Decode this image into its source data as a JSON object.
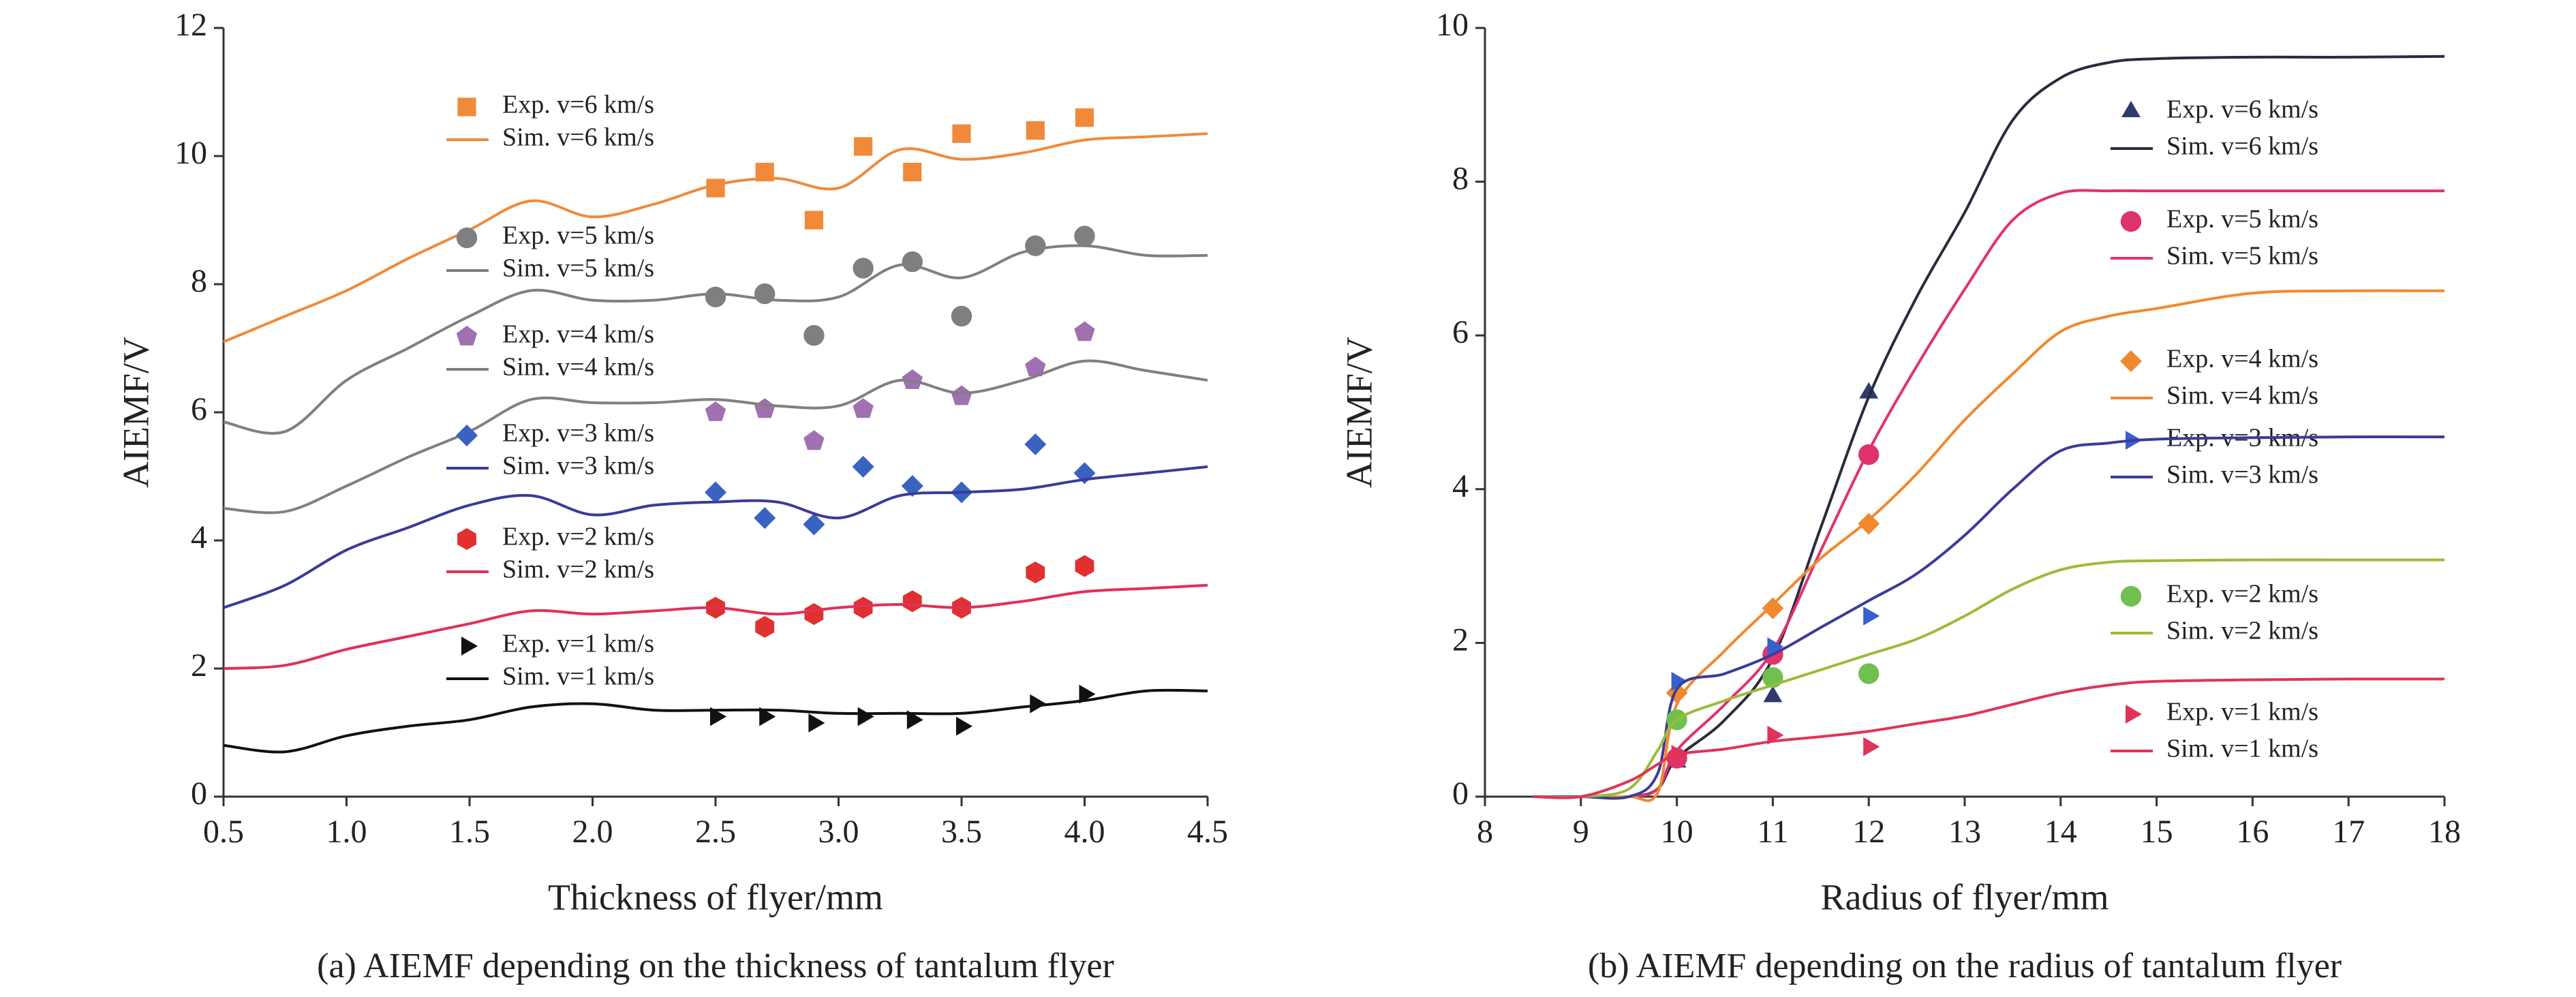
{
  "chart_data": [
    {
      "type": "line",
      "caption": "(a) AIEMF depending on the thickness of tantalum flyer",
      "x_label": "Thickness of flyer/mm",
      "y_label": "AIEMF/V",
      "xlim": [
        0.5,
        4.5
      ],
      "ylim": [
        0,
        12
      ],
      "xticks": [
        0.5,
        {
          "value": 1,
          "label": "1.0"
        },
        1.5,
        {
          "value": 2,
          "label": "2.0"
        },
        2.5,
        {
          "value": 3,
          "label": "3.0"
        },
        3.5,
        {
          "value": 4,
          "label": "4.0"
        },
        4.5
      ],
      "yticks": [
        0,
        2,
        4,
        6,
        8,
        10,
        12
      ],
      "series": [
        {
          "name": "Exp. v=6 km/s",
          "type": "scatter",
          "marker": "square",
          "color": "#f08a3a",
          "x": [
            2.5,
            2.7,
            2.9,
            3.1,
            3.3,
            3.5,
            3.8,
            4.0
          ],
          "values": [
            9.5,
            9.75,
            9.0,
            10.15,
            9.75,
            10.35,
            10.4,
            10.6
          ]
        },
        {
          "name": "Sim. v=6 km/s",
          "type": "line",
          "color": "#f08a3a",
          "x": [
            0.5,
            0.75,
            1.0,
            1.25,
            1.5,
            1.75,
            2.0,
            2.25,
            2.5,
            2.75,
            3.0,
            3.25,
            3.5,
            3.75,
            4.0,
            4.25,
            4.5
          ],
          "values": [
            7.1,
            7.5,
            7.9,
            8.4,
            8.85,
            9.3,
            9.05,
            9.25,
            9.55,
            9.65,
            9.5,
            10.1,
            9.95,
            10.05,
            10.25,
            10.3,
            10.35
          ]
        },
        {
          "name": "Exp. v=5 km/s",
          "type": "scatter",
          "marker": "circle",
          "color": "#7f7f7f",
          "x": [
            2.5,
            2.7,
            2.9,
            3.1,
            3.3,
            3.5,
            3.8,
            4.0
          ],
          "values": [
            7.8,
            7.85,
            7.2,
            8.25,
            8.35,
            7.5,
            8.6,
            8.75
          ]
        },
        {
          "name": "Sim. v=5 km/s",
          "type": "line",
          "color": "#7f7f7f",
          "x": [
            0.5,
            0.75,
            1.0,
            1.25,
            1.5,
            1.75,
            2.0,
            2.25,
            2.5,
            2.75,
            3.0,
            3.25,
            3.5,
            3.75,
            4.0,
            4.25,
            4.5
          ],
          "values": [
            5.85,
            5.7,
            6.5,
            7.0,
            7.5,
            7.9,
            7.75,
            7.75,
            7.85,
            7.75,
            7.8,
            8.3,
            8.1,
            8.5,
            8.6,
            8.45,
            8.45
          ]
        },
        {
          "name": "Exp. v=4 km/s",
          "type": "scatter",
          "marker": "pentagon",
          "color": "#a070b0",
          "x": [
            2.5,
            2.7,
            2.9,
            3.1,
            3.3,
            3.5,
            3.8,
            4.0
          ],
          "values": [
            6.0,
            6.05,
            5.55,
            6.05,
            6.5,
            6.25,
            6.7,
            7.25
          ]
        },
        {
          "name": "Sim. v=4 km/s",
          "type": "line",
          "color": "#808080",
          "x": [
            0.5,
            0.75,
            1.0,
            1.25,
            1.5,
            1.75,
            2.0,
            2.25,
            2.5,
            2.75,
            3.0,
            3.25,
            3.5,
            3.75,
            4.0,
            4.25,
            4.5
          ],
          "values": [
            4.5,
            4.45,
            4.85,
            5.3,
            5.7,
            6.2,
            6.15,
            6.15,
            6.2,
            6.1,
            6.1,
            6.5,
            6.3,
            6.5,
            6.8,
            6.65,
            6.5
          ]
        },
        {
          "name": "Exp. v=3 km/s",
          "type": "scatter",
          "marker": "diamond",
          "color": "#3a62c0",
          "x": [
            2.5,
            2.7,
            2.9,
            3.1,
            3.3,
            3.5,
            3.8,
            4.0
          ],
          "values": [
            4.75,
            4.35,
            4.25,
            5.15,
            4.85,
            4.75,
            5.5,
            5.05
          ]
        },
        {
          "name": "Sim. v=3 km/s",
          "type": "line",
          "color": "#3a3a9a",
          "x": [
            0.5,
            0.75,
            1.0,
            1.25,
            1.5,
            1.75,
            2.0,
            2.25,
            2.5,
            2.75,
            3.0,
            3.25,
            3.5,
            3.75,
            4.0,
            4.25,
            4.5
          ],
          "values": [
            2.95,
            3.3,
            3.85,
            4.2,
            4.55,
            4.7,
            4.4,
            4.55,
            4.6,
            4.6,
            4.35,
            4.7,
            4.75,
            4.8,
            4.95,
            5.05,
            5.15
          ]
        },
        {
          "name": "Exp. v=2 km/s",
          "type": "scatter",
          "marker": "hexagon",
          "color": "#e03030",
          "x": [
            2.5,
            2.7,
            2.9,
            3.1,
            3.3,
            3.5,
            3.8,
            4.0
          ],
          "values": [
            2.95,
            2.65,
            2.85,
            2.95,
            3.05,
            2.95,
            3.5,
            3.6
          ]
        },
        {
          "name": "Sim. v=2 km/s",
          "type": "line",
          "color": "#e0305a",
          "x": [
            0.5,
            0.75,
            1.0,
            1.25,
            1.5,
            1.75,
            2.0,
            2.25,
            2.5,
            2.75,
            3.0,
            3.25,
            3.5,
            3.75,
            4.0,
            4.25,
            4.5
          ],
          "values": [
            2.0,
            2.05,
            2.3,
            2.5,
            2.7,
            2.9,
            2.85,
            2.9,
            2.95,
            2.85,
            2.95,
            3.0,
            2.95,
            3.05,
            3.2,
            3.25,
            3.3
          ]
        },
        {
          "name": "Exp. v=1 km/s",
          "type": "scatter",
          "marker": "triangle-right",
          "color": "#111111",
          "x": [
            2.5,
            2.7,
            2.9,
            3.1,
            3.3,
            3.5,
            3.8,
            4.0
          ],
          "values": [
            1.25,
            1.25,
            1.15,
            1.25,
            1.2,
            1.1,
            1.45,
            1.6
          ]
        },
        {
          "name": "Sim. v=1 km/s",
          "type": "line",
          "color": "#111111",
          "x": [
            0.5,
            0.75,
            1.0,
            1.25,
            1.5,
            1.75,
            2.0,
            2.25,
            2.5,
            2.75,
            3.0,
            3.25,
            3.5,
            3.75,
            4.0,
            4.25,
            4.5
          ],
          "values": [
            0.8,
            0.7,
            0.95,
            1.1,
            1.2,
            1.4,
            1.45,
            1.35,
            1.35,
            1.35,
            1.3,
            1.3,
            1.3,
            1.4,
            1.5,
            1.65,
            1.65
          ]
        }
      ]
    },
    {
      "type": "line",
      "caption": "(b) AIEMF depending on the radius of tantalum flyer",
      "x_label": "Radius of flyer/mm",
      "y_label": "AIEMF/V",
      "xlim": [
        8,
        18
      ],
      "ylim": [
        0,
        10
      ],
      "xticks": [
        8,
        9,
        10,
        11,
        12,
        13,
        14,
        15,
        16,
        17,
        18
      ],
      "yticks": [
        0,
        2,
        4,
        6,
        8,
        10
      ],
      "series": [
        {
          "name": "Exp. v=6 km/s",
          "type": "scatter",
          "marker": "triangle-up",
          "color": "#2e3a6e",
          "x": [
            10,
            11,
            12
          ],
          "values": [
            0.45,
            1.3,
            5.25
          ]
        },
        {
          "name": "Sim. v=6 km/s",
          "type": "line",
          "color": "#2b2b3f",
          "x": [
            8.5,
            9,
            9.5,
            9.8,
            10,
            10.5,
            11,
            11.5,
            12,
            12.5,
            13,
            13.5,
            14,
            14.5,
            15,
            16,
            17,
            18
          ],
          "values": [
            0,
            0,
            0,
            0.1,
            0.5,
            1.0,
            1.8,
            3.5,
            5.2,
            6.5,
            7.6,
            8.8,
            9.35,
            9.55,
            9.6,
            9.62,
            9.62,
            9.63
          ]
        },
        {
          "name": "Exp. v=5 km/s",
          "type": "scatter",
          "marker": "circle",
          "color": "#e0336e",
          "x": [
            10,
            11,
            12
          ],
          "values": [
            0.5,
            1.85,
            4.45
          ]
        },
        {
          "name": "Sim. v=5 km/s",
          "type": "line",
          "color": "#e0336e",
          "x": [
            8.5,
            9,
            9.5,
            9.8,
            10,
            10.5,
            11,
            11.5,
            12,
            12.5,
            13,
            13.5,
            14,
            14.5,
            15,
            16,
            17,
            18
          ],
          "values": [
            0,
            0,
            0,
            0.1,
            0.6,
            1.2,
            1.9,
            3.2,
            4.5,
            5.6,
            6.6,
            7.5,
            7.85,
            7.88,
            7.88,
            7.88,
            7.88,
            7.88
          ]
        },
        {
          "name": "Exp. v=4 km/s",
          "type": "scatter",
          "marker": "diamond",
          "color": "#f0892e",
          "x": [
            10,
            11,
            12
          ],
          "values": [
            1.35,
            2.45,
            3.55
          ]
        },
        {
          "name": "Sim. v=4 km/s",
          "type": "line",
          "color": "#f0892e",
          "x": [
            8.5,
            9,
            9.5,
            9.8,
            10,
            10.5,
            11,
            11.5,
            12,
            12.5,
            13,
            13.5,
            14,
            14.5,
            15,
            16,
            17,
            18
          ],
          "values": [
            0,
            0,
            0,
            0.05,
            1.2,
            1.9,
            2.5,
            3.1,
            3.6,
            4.2,
            4.9,
            5.5,
            6.05,
            6.25,
            6.35,
            6.55,
            6.58,
            6.58
          ]
        },
        {
          "name": "Exp. v=3 km/s",
          "type": "scatter",
          "marker": "triangle-right",
          "color": "#3a5fcc",
          "x": [
            10,
            11,
            12
          ],
          "values": [
            1.5,
            1.95,
            2.35
          ]
        },
        {
          "name": "Sim. v=3 km/s",
          "type": "line",
          "color": "#3b3b9a",
          "x": [
            8.5,
            9,
            9.5,
            9.8,
            10,
            10.5,
            11,
            11.5,
            12,
            12.5,
            13,
            13.5,
            14,
            14.5,
            15,
            16,
            17,
            18
          ],
          "values": [
            0,
            0,
            0,
            0.3,
            1.4,
            1.6,
            1.85,
            2.2,
            2.55,
            2.9,
            3.4,
            4.0,
            4.5,
            4.6,
            4.65,
            4.67,
            4.68,
            4.68
          ]
        },
        {
          "name": "Exp. v=2 km/s",
          "type": "scatter",
          "marker": "circle",
          "color": "#70c050",
          "x": [
            10,
            11,
            12
          ],
          "values": [
            1.0,
            1.55,
            1.6
          ]
        },
        {
          "name": "Sim. v=2 km/s",
          "type": "line",
          "color": "#9bbb3a",
          "x": [
            8.5,
            9,
            9.5,
            9.8,
            10,
            10.5,
            11,
            11.5,
            12,
            12.5,
            13,
            13.5,
            14,
            14.5,
            15,
            16,
            17,
            18
          ],
          "values": [
            0,
            0,
            0.1,
            0.6,
            1.0,
            1.25,
            1.45,
            1.65,
            1.85,
            2.05,
            2.35,
            2.7,
            2.95,
            3.05,
            3.07,
            3.08,
            3.08,
            3.08
          ]
        },
        {
          "name": "Exp. v=1 km/s",
          "type": "scatter",
          "marker": "triangle-right",
          "color": "#e0335a",
          "x": [
            10,
            11,
            12
          ],
          "values": [
            0.55,
            0.8,
            0.65
          ]
        },
        {
          "name": "Sim. v=1 km/s",
          "type": "line",
          "color": "#e0335a",
          "x": [
            8.5,
            9,
            9.5,
            9.8,
            10,
            10.5,
            11,
            11.5,
            12,
            12.5,
            13,
            13.5,
            14,
            14.5,
            15,
            16,
            17,
            18
          ],
          "values": [
            0,
            0,
            0.2,
            0.42,
            0.55,
            0.62,
            0.72,
            0.78,
            0.85,
            0.95,
            1.05,
            1.2,
            1.35,
            1.45,
            1.5,
            1.52,
            1.53,
            1.53
          ]
        }
      ]
    }
  ]
}
